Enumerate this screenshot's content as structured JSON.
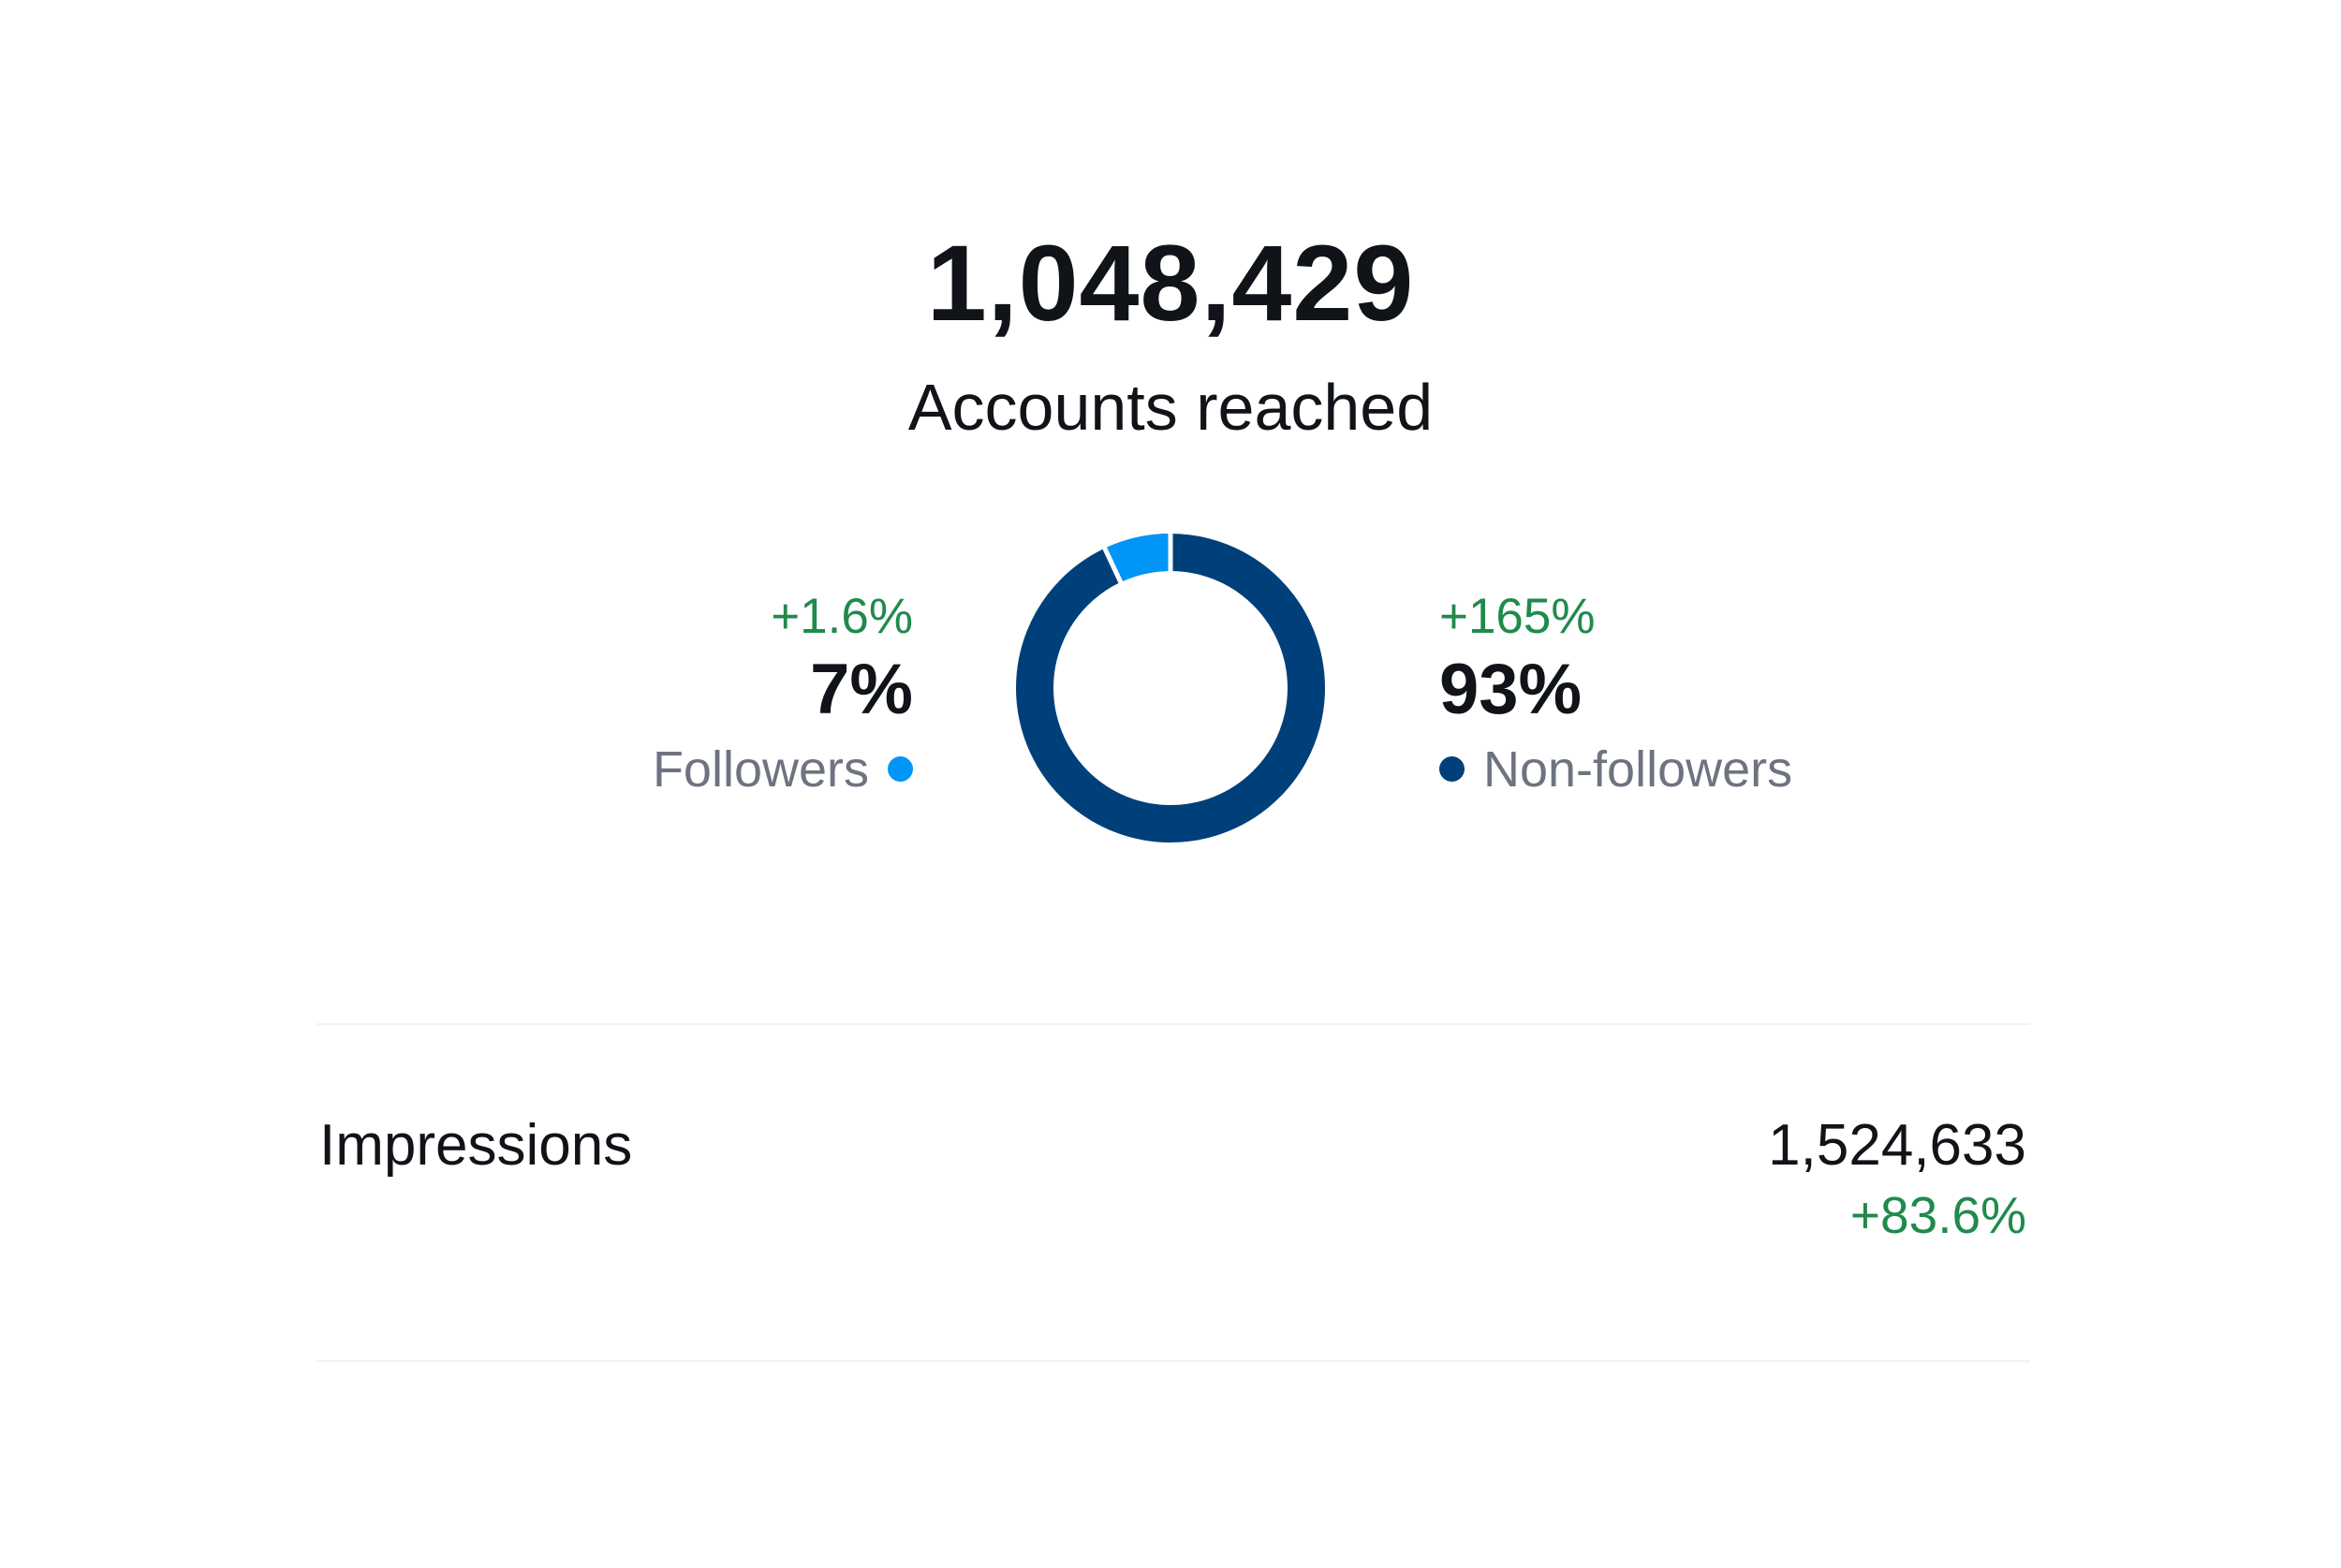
{
  "accounts_reached": {
    "value": "1,048,429",
    "label": "Accounts reached"
  },
  "followers": {
    "delta": "+1.6%",
    "percent": "7%",
    "label": "Followers",
    "share": 7,
    "color": "#0095f6"
  },
  "non_followers": {
    "delta": "+165%",
    "percent": "93%",
    "label": "Non-followers",
    "share": 93,
    "color": "#00407a"
  },
  "impressions": {
    "label": "Impressions",
    "value": "1,524,633",
    "delta": "+83.6%"
  },
  "colors": {
    "positive": "#1f8a4c",
    "text": "#101318",
    "muted": "#6e7380"
  }
}
